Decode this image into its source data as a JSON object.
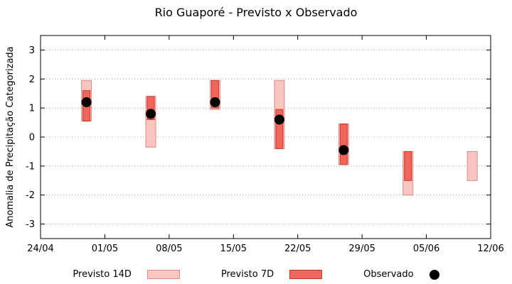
{
  "chart_data": {
    "type": "bar",
    "title": "Rio Guaporé - Previsto x Observado",
    "ylabel": "Anomalia de Precipitação Categorizada",
    "xlabel": "",
    "ylim": [
      -3.5,
      3.5
    ],
    "grid": true,
    "legend_position": "bottom",
    "yticks": [
      -3,
      -2,
      -1,
      0,
      1,
      2,
      3
    ],
    "x_axis": {
      "range_days": [
        0,
        49
      ],
      "ticks": [
        {
          "day": 0,
          "label": "24/04"
        },
        {
          "day": 7,
          "label": "01/05"
        },
        {
          "day": 14,
          "label": "08/05"
        },
        {
          "day": 21,
          "label": "15/05"
        },
        {
          "day": 28,
          "label": "22/05"
        },
        {
          "day": 35,
          "label": "29/05"
        },
        {
          "day": 42,
          "label": "05/06"
        },
        {
          "day": 49,
          "label": "12/06"
        }
      ]
    },
    "series": [
      {
        "name": "Previsto 14D",
        "type": "bar",
        "color": "#f8c5c1",
        "border": "#e08a83",
        "width": 14,
        "bars": [
          {
            "day": 5,
            "low": 0.55,
            "high": 1.95
          },
          {
            "day": 12,
            "low": -0.35,
            "high": 1.4
          },
          {
            "day": 19,
            "low": 0.95,
            "high": 1.95
          },
          {
            "day": 26,
            "low": -0.4,
            "high": 1.95
          },
          {
            "day": 33,
            "low": -0.95,
            "high": 0.45
          },
          {
            "day": 40,
            "low": -2.0,
            "high": -0.5
          },
          {
            "day": 47,
            "low": -1.5,
            "high": -0.5
          }
        ]
      },
      {
        "name": "Previsto 7D",
        "type": "bar",
        "color": "#ef675c",
        "border": "#c2382c",
        "width": 10,
        "bars": [
          {
            "day": 5,
            "low": 0.55,
            "high": 1.6
          },
          {
            "day": 12,
            "low": 0.6,
            "high": 1.4
          },
          {
            "day": 19,
            "low": 1.0,
            "high": 1.95
          },
          {
            "day": 26,
            "low": -0.4,
            "high": 0.95
          },
          {
            "day": 33,
            "low": -0.95,
            "high": 0.45
          },
          {
            "day": 40,
            "low": -1.5,
            "high": -0.5
          }
        ]
      },
      {
        "name": "Observado",
        "type": "scatter",
        "color": "#000000",
        "points": [
          {
            "day": 5,
            "value": 1.2
          },
          {
            "day": 12,
            "value": 0.8
          },
          {
            "day": 19,
            "value": 1.2
          },
          {
            "day": 26,
            "value": 0.6
          },
          {
            "day": 33,
            "value": -0.45
          }
        ]
      }
    ]
  }
}
